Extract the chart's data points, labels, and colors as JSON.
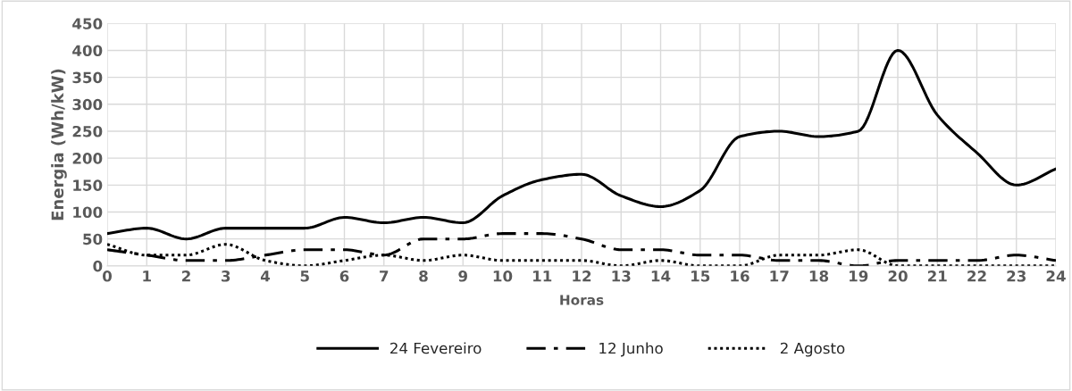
{
  "chart_data": {
    "type": "line",
    "xlabel": "Horas",
    "ylabel": "Energia (Wh/kW)",
    "x": [
      0,
      1,
      2,
      3,
      4,
      5,
      6,
      7,
      8,
      9,
      10,
      11,
      12,
      13,
      14,
      15,
      16,
      17,
      18,
      19,
      20,
      21,
      22,
      23,
      24
    ],
    "xlim": [
      0,
      24
    ],
    "xticks": [
      0,
      1,
      2,
      3,
      4,
      5,
      6,
      7,
      8,
      9,
      10,
      11,
      12,
      13,
      14,
      15,
      16,
      17,
      18,
      19,
      20,
      21,
      22,
      23,
      24
    ],
    "ylim": [
      0,
      450
    ],
    "yticks": [
      0,
      50,
      100,
      150,
      200,
      250,
      300,
      350,
      400,
      450
    ],
    "grid": true,
    "legend": "bottom",
    "marker": "none",
    "series": [
      {
        "name": "24 Fevereiro",
        "color": "#000000",
        "line_style": "solid",
        "values": [
          60,
          70,
          50,
          70,
          70,
          70,
          90,
          80,
          90,
          80,
          130,
          160,
          170,
          130,
          110,
          140,
          240,
          250,
          240,
          250,
          400,
          280,
          210,
          150,
          180
        ]
      },
      {
        "name": "12 Junho",
        "color": "#000000",
        "line_style": "dashdot",
        "values": [
          30,
          20,
          10,
          10,
          20,
          30,
          30,
          20,
          50,
          50,
          60,
          60,
          50,
          30,
          30,
          20,
          20,
          10,
          10,
          0,
          10,
          10,
          10,
          20,
          10
        ]
      },
      {
        "name": "2 Agosto",
        "color": "#000000",
        "line_style": "dotted",
        "values": [
          40,
          20,
          20,
          40,
          10,
          0,
          10,
          20,
          10,
          20,
          10,
          10,
          10,
          0,
          10,
          0,
          0,
          20,
          20,
          30,
          0,
          0,
          0,
          0,
          0
        ]
      }
    ]
  }
}
